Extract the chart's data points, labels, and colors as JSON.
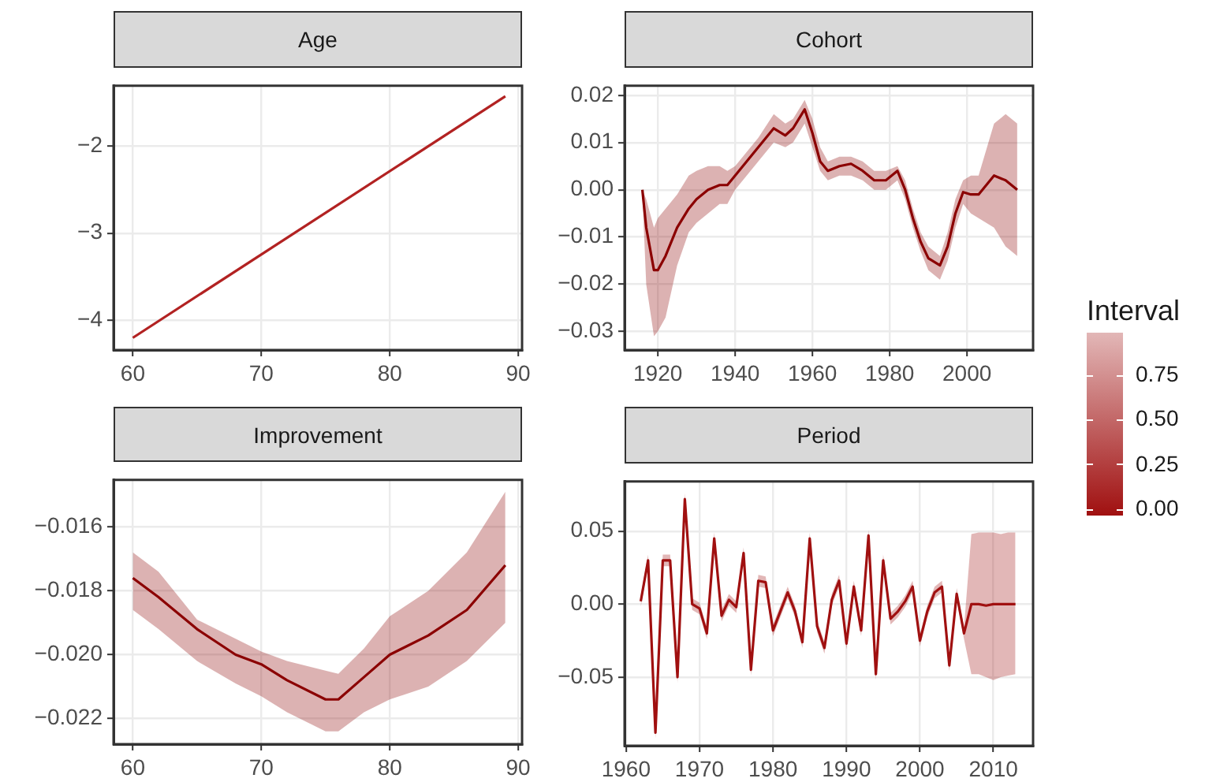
{
  "chart_data": [
    {
      "type": "line",
      "title": "Age",
      "marker": "none",
      "grid": true,
      "xlim": [
        58.5,
        90.3
      ],
      "xticks": [
        60,
        70,
        80,
        90
      ],
      "ylim": [
        -4.34,
        -1.31
      ],
      "yticks": [
        {
          "value": -4,
          "label": "−4"
        },
        {
          "value": -3,
          "label": "−3"
        },
        {
          "value": -2,
          "label": "−2"
        }
      ],
      "x": [
        60,
        89
      ],
      "series": [
        {
          "color": "#b22222",
          "values": [
            -4.2,
            -1.43
          ]
        }
      ]
    },
    {
      "type": "line",
      "title": "Cohort",
      "marker": "none",
      "grid": true,
      "xlim": [
        1911.4,
        2017.1
      ],
      "xticks": [
        1920,
        1940,
        1960,
        1980,
        2000
      ],
      "ylim": [
        -0.0339,
        0.022
      ],
      "yticks": [
        {
          "value": -0.03,
          "label": "−0.03"
        },
        {
          "value": -0.02,
          "label": "−0.02"
        },
        {
          "value": -0.01,
          "label": "−0.01"
        },
        {
          "value": 0,
          "label": "0.00"
        },
        {
          "value": 0.01,
          "label": "0.01"
        },
        {
          "value": 0.02,
          "label": "0.02"
        }
      ],
      "x": [
        1916,
        1917,
        1919,
        1920,
        1922,
        1925,
        1928,
        1930,
        1933,
        1936,
        1938,
        1940,
        1943,
        1946,
        1950,
        1953,
        1955,
        1958,
        1960,
        1962,
        1964,
        1967,
        1970,
        1973,
        1976,
        1979,
        1982,
        1984,
        1986,
        1988,
        1990,
        1993,
        1995,
        1997,
        1999,
        2001,
        2003,
        2007,
        2010,
        2013
      ],
      "series": [
        {
          "color": "#8b0000",
          "values": [
            0,
            -0.008,
            -0.017,
            -0.017,
            -0.014,
            -0.008,
            -0.004,
            -0.002,
            0,
            0.001,
            0.001,
            0.003,
            0.006,
            0.009,
            0.013,
            0.0115,
            0.013,
            0.017,
            0.012,
            0.006,
            0.004,
            0.005,
            0.0055,
            0.004,
            0.002,
            0.002,
            0.004,
            0,
            -0.006,
            -0.011,
            -0.0145,
            -0.016,
            -0.012,
            -0.005,
            -0.0005,
            -0.001,
            -0.001,
            0.003,
            0.002,
            0
          ],
          "lower": [
            -0.001,
            -0.02,
            -0.031,
            -0.03,
            -0.027,
            -0.016,
            -0.009,
            -0.007,
            -0.005,
            -0.003,
            -0.003,
            0,
            0.003,
            0.006,
            0.01,
            0.009,
            0.01,
            0.014,
            0.009,
            0.004,
            0.002,
            0.003,
            0.003,
            0.002,
            0,
            0,
            0.002,
            -0.002,
            -0.008,
            -0.013,
            -0.017,
            -0.019,
            -0.015,
            -0.008,
            -0.003,
            -0.005,
            -0.006,
            -0.008,
            -0.012,
            -0.014
          ],
          "upper": [
            0,
            -0.002,
            -0.008,
            -0.006,
            -0.004,
            -0.001,
            0.003,
            0.004,
            0.005,
            0.005,
            0.004,
            0.005,
            0.008,
            0.011,
            0.016,
            0.014,
            0.015,
            0.019,
            0.015,
            0.009,
            0.006,
            0.007,
            0.007,
            0.006,
            0.004,
            0.004,
            0.005,
            0.002,
            -0.004,
            -0.009,
            -0.012,
            -0.014,
            -0.009,
            -0.002,
            0.002,
            0.003,
            0.003,
            0.014,
            0.016,
            0.014
          ]
        }
      ]
    },
    {
      "type": "line",
      "title": "Improvement",
      "marker": "none",
      "grid": true,
      "xlim": [
        58.5,
        90.3
      ],
      "xticks": [
        60,
        70,
        80,
        90
      ],
      "ylim": [
        -0.0228,
        -0.01453
      ],
      "yticks": [
        {
          "value": -0.022,
          "label": "−0.022"
        },
        {
          "value": -0.02,
          "label": "−0.020"
        },
        {
          "value": -0.018,
          "label": "−0.018"
        },
        {
          "value": -0.016,
          "label": "−0.016"
        }
      ],
      "x": [
        60,
        62,
        65,
        68,
        70,
        72,
        75,
        76,
        78,
        80,
        83,
        86,
        89
      ],
      "series": [
        {
          "color": "#8b0000",
          "values": [
            -0.0176,
            -0.0182,
            -0.0192,
            -0.02,
            -0.0203,
            -0.0208,
            -0.0214,
            -0.0214,
            -0.0207,
            -0.02,
            -0.0194,
            -0.0186,
            -0.0172
          ],
          "lower": [
            -0.0186,
            -0.0192,
            -0.0202,
            -0.0209,
            -0.0213,
            -0.0218,
            -0.0224,
            -0.0224,
            -0.0218,
            -0.0214,
            -0.021,
            -0.0202,
            -0.019
          ],
          "upper": [
            -0.0168,
            -0.0174,
            -0.0189,
            -0.0195,
            -0.0199,
            -0.0202,
            -0.0205,
            -0.0206,
            -0.0198,
            -0.0188,
            -0.018,
            -0.0168,
            -0.0149
          ]
        }
      ]
    },
    {
      "type": "line",
      "title": "Period",
      "marker": "none",
      "grid": true,
      "xlim": [
        1959.8,
        2015.4
      ],
      "xticks": [
        1960,
        1970,
        1980,
        1990,
        2000,
        2010
      ],
      "ylim": [
        -0.097,
        0.084
      ],
      "yticks": [
        {
          "value": -0.05,
          "label": "−0.05"
        },
        {
          "value": 0,
          "label": "0.00"
        },
        {
          "value": 0.05,
          "label": "0.05"
        }
      ],
      "clabel": "Interval",
      "clim": [
        0,
        0.95
      ],
      "cticks": [
        {
          "value": 0,
          "label": "0.00"
        },
        {
          "value": 0.25,
          "label": "0.25"
        },
        {
          "value": 0.5,
          "label": "0.50"
        },
        {
          "value": 0.75,
          "label": "0.75"
        }
      ],
      "x": [
        1962,
        1963,
        1964,
        1965,
        1966,
        1967,
        1968,
        1969,
        1970,
        1971,
        1972,
        1973,
        1974,
        1975,
        1976,
        1977,
        1978,
        1979,
        1980,
        1981,
        1982,
        1983,
        1984,
        1985,
        1986,
        1987,
        1988,
        1989,
        1990,
        1991,
        1992,
        1993,
        1994,
        1995,
        1996,
        1997,
        1998,
        1999,
        2000,
        2001,
        2002,
        2003,
        2004,
        2005,
        2006,
        2007,
        2008,
        2009,
        2010,
        2011,
        2012,
        2013
      ],
      "series": [
        {
          "color": "#a01010",
          "values": [
            0.002,
            0.03,
            -0.088,
            0.03,
            0.03,
            -0.05,
            0.072,
            0,
            -0.003,
            -0.02,
            0.045,
            -0.008,
            0.003,
            -0.002,
            0.035,
            -0.045,
            0.016,
            0.015,
            -0.018,
            -0.005,
            0.008,
            -0.005,
            -0.026,
            0.045,
            -0.015,
            -0.03,
            0.003,
            0.016,
            -0.027,
            0.012,
            -0.018,
            0.047,
            -0.048,
            0.03,
            -0.01,
            -0.005,
            0.002,
            0.012,
            -0.025,
            -0.005,
            0.008,
            0.012,
            -0.042,
            0.007,
            -0.02,
            0,
            0,
            -0.001,
            0,
            0,
            0,
            0
          ],
          "lower": [
            -0.002,
            0.026,
            -0.092,
            0.026,
            0.026,
            -0.054,
            0.068,
            -0.004,
            -0.007,
            -0.024,
            0.041,
            -0.012,
            -0.001,
            -0.006,
            0.031,
            -0.049,
            0.012,
            0.011,
            -0.022,
            -0.009,
            0.004,
            -0.009,
            -0.03,
            0.041,
            -0.019,
            -0.034,
            -0.001,
            0.012,
            -0.031,
            0.008,
            -0.022,
            0.043,
            -0.052,
            0.026,
            -0.014,
            -0.009,
            -0.002,
            0.008,
            -0.029,
            -0.009,
            0.004,
            0.008,
            -0.046,
            0.003,
            -0.024,
            -0.048,
            -0.048,
            -0.05,
            -0.052,
            -0.05,
            -0.049,
            -0.048
          ],
          "upper": [
            0.006,
            0.034,
            -0.084,
            0.034,
            0.034,
            -0.046,
            0.076,
            0.004,
            0.001,
            -0.016,
            0.049,
            -0.004,
            0.007,
            0.002,
            0.039,
            -0.041,
            0.02,
            0.019,
            -0.014,
            -0.001,
            0.012,
            -0.001,
            -0.022,
            0.049,
            -0.011,
            -0.026,
            0.007,
            0.02,
            -0.023,
            0.016,
            -0.014,
            0.051,
            -0.044,
            0.034,
            -0.006,
            -0.001,
            0.006,
            0.016,
            -0.021,
            -0.001,
            0.012,
            0.016,
            -0.038,
            0.011,
            -0.016,
            0.048,
            0.049,
            0.049,
            0.049,
            0.048,
            0.049,
            0.049
          ]
        }
      ]
    }
  ]
}
